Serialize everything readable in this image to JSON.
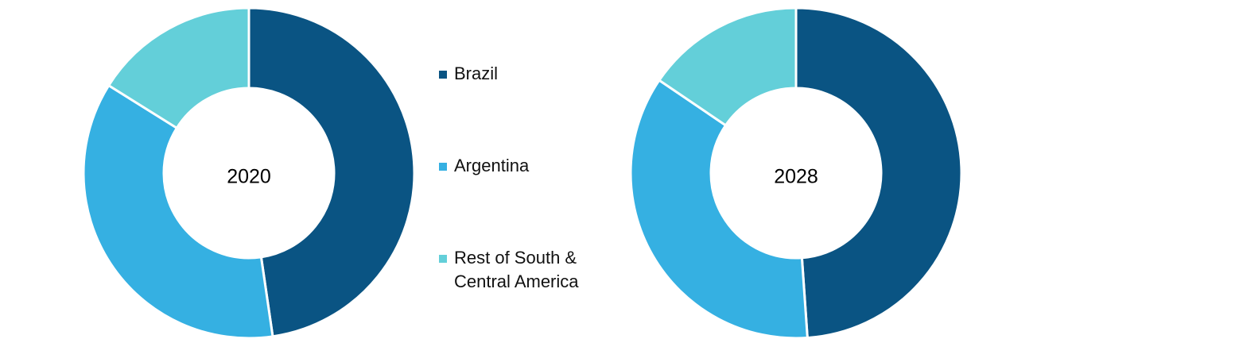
{
  "chart_data": [
    {
      "type": "pie",
      "title": "2020",
      "donut": true,
      "categories": [
        "Brazil",
        "Argentina",
        "Rest of South & Central America"
      ],
      "values": [
        47.7,
        36.2,
        16.1
      ],
      "colors": [
        "#0a5483",
        "#35b0e2",
        "#63cfd9"
      ]
    },
    {
      "type": "pie",
      "title": "2028",
      "donut": true,
      "categories": [
        "Brazil",
        "Argentina",
        "Rest of South & Central America"
      ],
      "values": [
        48.9,
        35.6,
        15.5
      ],
      "colors": [
        "#0a5483",
        "#35b0e2",
        "#63cfd9"
      ]
    }
  ]
}
